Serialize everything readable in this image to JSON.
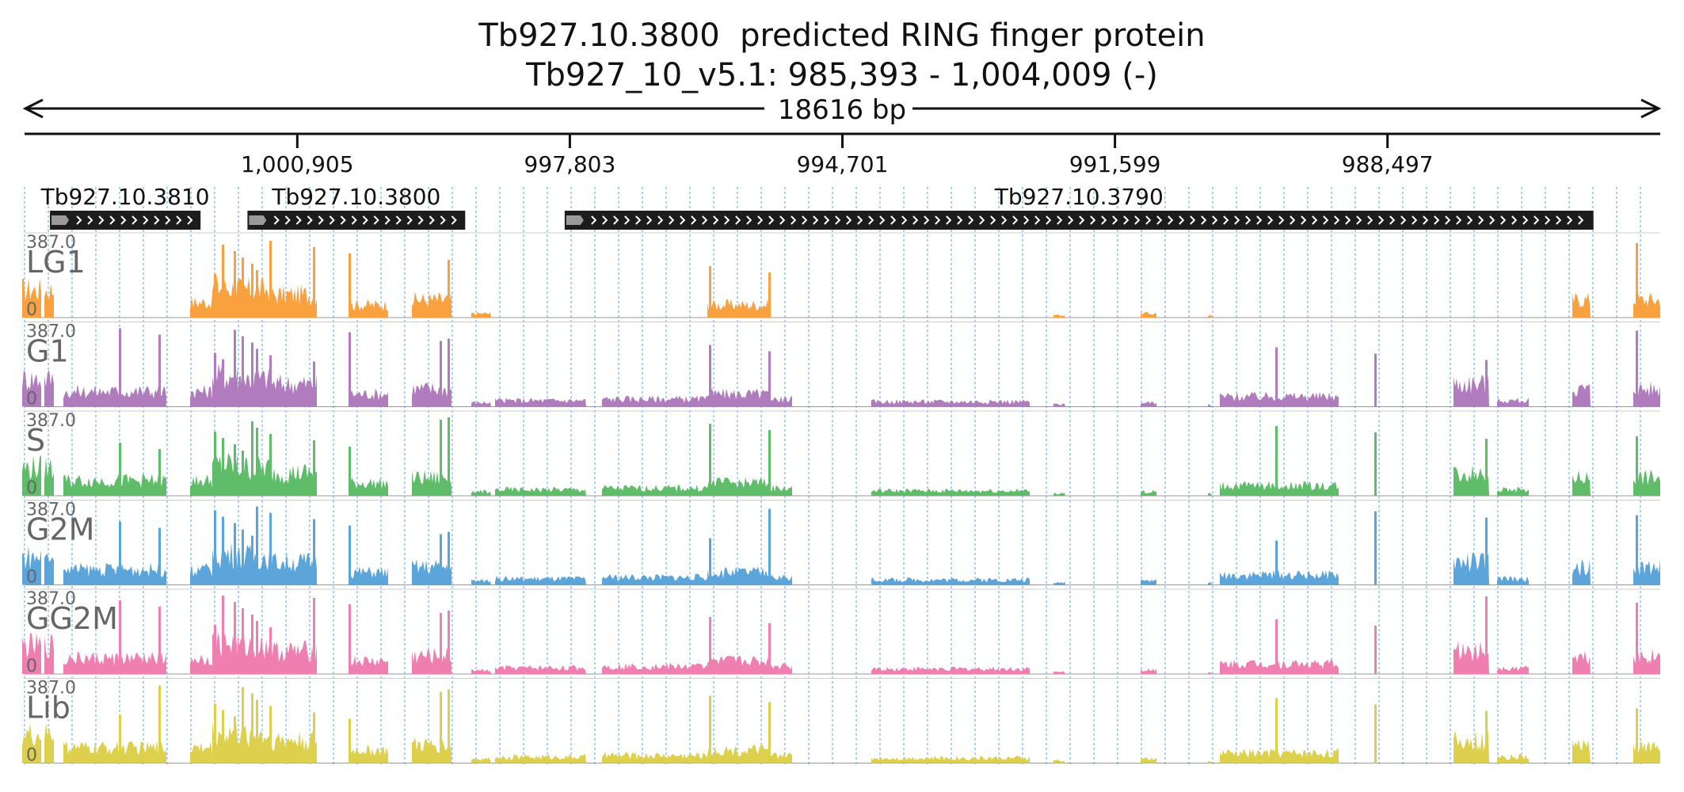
{
  "header": {
    "title": "Tb927.10.3800  predicted RING finger protein",
    "coords": "Tb927_10_v5.1: 985,393 - 1,004,009 (-)"
  },
  "ruler": {
    "span_label": "18616 bp",
    "ticks": [
      {
        "label": "1,000,905",
        "pos": 1000905
      },
      {
        "label": "997,803",
        "pos": 997803
      },
      {
        "label": "994,701",
        "pos": 994701
      },
      {
        "label": "991,599",
        "pos": 991599
      },
      {
        "label": "988,497",
        "pos": 988497
      }
    ]
  },
  "region": {
    "start": 985393,
    "end": 1004009,
    "strand": "-"
  },
  "genes": [
    {
      "name": "Tb927.10.3810",
      "start": 1002006,
      "end": 1003720
    },
    {
      "name": "Tb927.10.3800",
      "start": 998994,
      "end": 1001472
    },
    {
      "name": "Tb927.10.3790",
      "start": 986153,
      "end": 997862
    }
  ],
  "tracks": [
    {
      "name": "LG1",
      "max": "387.0",
      "min": "0",
      "color": "#f9a03f"
    },
    {
      "name": "G1",
      "max": "387.0",
      "min": "0",
      "color": "#b07cbd"
    },
    {
      "name": "S",
      "max": "387.0",
      "min": "0",
      "color": "#5fbd6a"
    },
    {
      "name": "G2M",
      "max": "387.0",
      "min": "0",
      "color": "#5ba5db"
    },
    {
      "name": "GG2M",
      "max": "387.0",
      "min": "0",
      "color": "#ef7fb0"
    },
    {
      "name": "Lib",
      "max": "387.0",
      "min": "0",
      "color": "#ddd04d"
    }
  ],
  "colors": {
    "gene_fill": "#1c1c1c",
    "gridline": "#86b6e6",
    "label_grey": "#666666"
  }
}
